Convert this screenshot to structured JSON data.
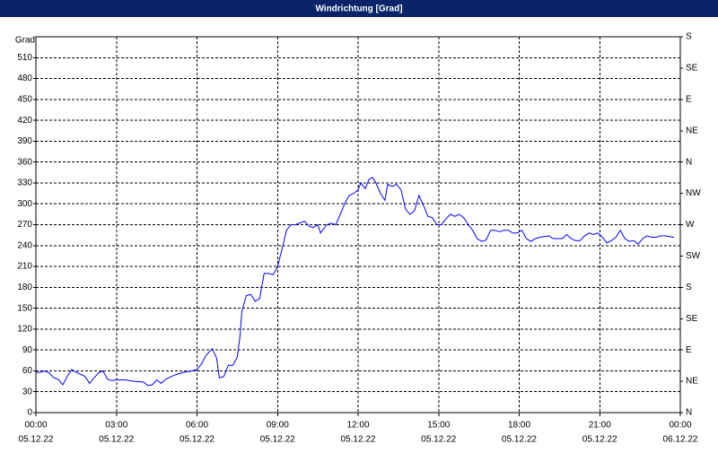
{
  "chart_data": {
    "type": "line",
    "title": "Windrichtung [Grad]",
    "y_label": "Grad",
    "color": "#0000ff",
    "grid": true,
    "xlim": [
      0,
      1440
    ],
    "ylim": [
      0,
      540
    ],
    "y2lim": [
      0,
      540
    ],
    "xticks": [
      {
        "value": 0,
        "label": "00:00"
      },
      {
        "value": 180,
        "label": "03:00"
      },
      {
        "value": 360,
        "label": "06:00"
      },
      {
        "value": 540,
        "label": "09:00"
      },
      {
        "value": 720,
        "label": "12:00"
      },
      {
        "value": 900,
        "label": "15:00"
      },
      {
        "value": 1080,
        "label": "18:00"
      },
      {
        "value": 1260,
        "label": "21:00"
      },
      {
        "value": 1440,
        "label": "00:00"
      }
    ],
    "xtick_dates": [
      "05.12.22",
      "05.12.22",
      "05.12.22",
      "05.12.22",
      "05.12.22",
      "05.12.22",
      "05.12.22",
      "05.12.22",
      "06.12.22"
    ],
    "yticks": [
      0,
      30,
      60,
      90,
      120,
      150,
      180,
      210,
      240,
      270,
      300,
      330,
      360,
      390,
      420,
      450,
      480,
      510
    ],
    "y2ticks": [
      {
        "value": 0,
        "label": "N"
      },
      {
        "value": 45,
        "label": "NE"
      },
      {
        "value": 90,
        "label": "E"
      },
      {
        "value": 135,
        "label": "SE"
      },
      {
        "value": 180,
        "label": "S"
      },
      {
        "value": 225,
        "label": "SW"
      },
      {
        "value": 270,
        "label": "W"
      },
      {
        "value": 315,
        "label": "NW"
      },
      {
        "value": 360,
        "label": "N"
      },
      {
        "value": 405,
        "label": "NE"
      },
      {
        "value": 450,
        "label": "E"
      },
      {
        "value": 495,
        "label": "SE"
      },
      {
        "value": 540,
        "label": "S"
      }
    ],
    "x": [
      0,
      10,
      20,
      30,
      40,
      50,
      60,
      70,
      80,
      90,
      100,
      110,
      120,
      130,
      140,
      150,
      160,
      170,
      180,
      200,
      220,
      240,
      250,
      260,
      270,
      280,
      290,
      310,
      330,
      350,
      360,
      370,
      380,
      394,
      404,
      410,
      420,
      430,
      440,
      450,
      456,
      460,
      470,
      480,
      490,
      500,
      510,
      520,
      530,
      540,
      550,
      560,
      570,
      580,
      600,
      610,
      620,
      630,
      636,
      650,
      660,
      670,
      680,
      690,
      700,
      710,
      720,
      726,
      736,
      744,
      752,
      760,
      770,
      780,
      786,
      796,
      806,
      816,
      826,
      836,
      846,
      856,
      866,
      876,
      886,
      896,
      906,
      916,
      926,
      936,
      946,
      956,
      966,
      976,
      986,
      996,
      1006,
      1016,
      1026,
      1036,
      1046,
      1056,
      1066,
      1076,
      1086,
      1096,
      1106,
      1116,
      1126,
      1146,
      1156,
      1166,
      1176,
      1186,
      1196,
      1206,
      1216,
      1226,
      1236,
      1246,
      1256,
      1266,
      1276,
      1286,
      1296,
      1306,
      1316,
      1326,
      1336,
      1346,
      1356,
      1366,
      1376,
      1386,
      1396,
      1406,
      1416,
      1426
    ],
    "values": [
      58,
      58,
      60,
      57,
      50,
      48,
      40,
      52,
      62,
      58,
      55,
      52,
      42,
      50,
      57,
      60,
      48,
      46,
      47,
      47,
      45,
      44,
      39,
      40,
      47,
      42,
      48,
      54,
      58,
      60,
      62,
      70,
      82,
      92,
      78,
      50,
      52,
      68,
      68,
      80,
      110,
      145,
      168,
      170,
      160,
      164,
      200,
      200,
      198,
      210,
      235,
      262,
      270,
      270,
      275,
      268,
      266,
      270,
      258,
      270,
      272,
      270,
      285,
      300,
      312,
      315,
      320,
      330,
      322,
      335,
      338,
      330,
      315,
      305,
      328,
      325,
      328,
      320,
      292,
      285,
      290,
      312,
      298,
      282,
      280,
      270,
      270,
      278,
      285,
      282,
      285,
      280,
      270,
      262,
      250,
      246,
      248,
      262,
      262,
      260,
      262,
      262,
      258,
      258,
      262,
      250,
      246,
      250,
      252,
      254,
      250,
      250,
      250,
      256,
      250,
      247,
      247,
      254,
      258,
      256,
      258,
      252,
      244,
      247,
      252,
      262,
      250,
      246,
      247,
      242,
      250,
      254,
      252,
      252,
      254,
      254,
      253,
      252
    ]
  }
}
